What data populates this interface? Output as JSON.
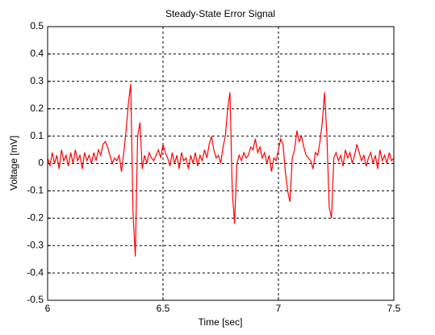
{
  "chart_data": {
    "type": "line",
    "title": "Steady-State Error Signal",
    "x_label": "Time [sec]",
    "y_label": "Voltage [mV]",
    "x": [
      6.0,
      6.01,
      6.02,
      6.03,
      6.04,
      6.05,
      6.06,
      6.07,
      6.08,
      6.09,
      6.1,
      6.11,
      6.12,
      6.13,
      6.14,
      6.15,
      6.16,
      6.17,
      6.18,
      6.19,
      6.2,
      6.21,
      6.22,
      6.23,
      6.24,
      6.25,
      6.26,
      6.27,
      6.28,
      6.29,
      6.3,
      6.31,
      6.32,
      6.33,
      6.34,
      6.35,
      6.36,
      6.37,
      6.38,
      6.39,
      6.4,
      6.41,
      6.42,
      6.43,
      6.44,
      6.45,
      6.46,
      6.47,
      6.48,
      6.49,
      6.5,
      6.51,
      6.52,
      6.53,
      6.54,
      6.55,
      6.56,
      6.57,
      6.58,
      6.59,
      6.6,
      6.61,
      6.62,
      6.63,
      6.64,
      6.65,
      6.66,
      6.67,
      6.68,
      6.69,
      6.7,
      6.71,
      6.72,
      6.73,
      6.74,
      6.75,
      6.76,
      6.77,
      6.78,
      6.79,
      6.8,
      6.81,
      6.82,
      6.83,
      6.84,
      6.85,
      6.86,
      6.87,
      6.88,
      6.89,
      6.9,
      6.91,
      6.92,
      6.93,
      6.94,
      6.95,
      6.96,
      6.97,
      6.98,
      6.99,
      7.0,
      7.01,
      7.02,
      7.03,
      7.04,
      7.05,
      7.06,
      7.07,
      7.08,
      7.09,
      7.1,
      7.11,
      7.12,
      7.13,
      7.14,
      7.15,
      7.16,
      7.17,
      7.18,
      7.19,
      7.2,
      7.21,
      7.22,
      7.23,
      7.24,
      7.25,
      7.26,
      7.27,
      7.28,
      7.29,
      7.3,
      7.31,
      7.32,
      7.33,
      7.34,
      7.35,
      7.36,
      7.37,
      7.38,
      7.39,
      7.4,
      7.41,
      7.42,
      7.43,
      7.44,
      7.45,
      7.46,
      7.47,
      7.48,
      7.49,
      7.5
    ],
    "values": [
      0.02,
      -0.01,
      0.04,
      0.0,
      0.03,
      -0.02,
      0.05,
      0.01,
      0.03,
      -0.01,
      0.04,
      0.0,
      0.05,
      0.01,
      0.03,
      -0.02,
      0.04,
      0.01,
      0.03,
      0.0,
      0.04,
      0.01,
      0.05,
      0.03,
      0.07,
      0.08,
      0.06,
      0.03,
      0.0,
      0.02,
      0.01,
      0.03,
      -0.03,
      0.04,
      0.12,
      0.22,
      0.29,
      -0.18,
      -0.34,
      0.1,
      0.15,
      -0.02,
      0.03,
      0.0,
      0.04,
      0.02,
      0.01,
      0.03,
      0.05,
      0.02,
      0.07,
      0.04,
      0.02,
      -0.01,
      0.04,
      0.0,
      0.03,
      -0.02,
      0.04,
      0.01,
      0.02,
      -0.02,
      0.03,
      0.0,
      0.04,
      -0.01,
      0.03,
      0.01,
      0.05,
      0.02,
      0.07,
      0.1,
      0.05,
      0.02,
      0.03,
      0.0,
      0.06,
      0.1,
      0.2,
      0.26,
      -0.1,
      -0.22,
      0.0,
      0.03,
      0.01,
      0.04,
      0.02,
      0.03,
      0.06,
      0.05,
      0.09,
      0.04,
      0.06,
      0.02,
      0.04,
      0.0,
      0.03,
      -0.03,
      0.02,
      0.01,
      0.05,
      0.09,
      0.07,
      -0.03,
      -0.1,
      -0.14,
      0.02,
      0.05,
      0.12,
      0.08,
      0.1,
      0.06,
      0.03,
      0.02,
      0.01,
      -0.02,
      0.04,
      0.03,
      0.08,
      0.15,
      0.26,
      0.1,
      -0.16,
      -0.2,
      0.02,
      0.04,
      0.01,
      0.03,
      -0.01,
      0.05,
      0.02,
      0.04,
      0.0,
      0.03,
      0.07,
      0.04,
      0.01,
      0.03,
      -0.01,
      0.02,
      0.04,
      0.0,
      0.03,
      -0.02,
      0.05,
      0.01,
      0.03,
      0.0,
      0.04,
      0.01,
      0.02
    ],
    "color": "#ff0000",
    "xlim": [
      6,
      7.5
    ],
    "ylim": [
      -0.5,
      0.5
    ],
    "xticks": [
      6,
      6.5,
      7,
      7.5
    ],
    "yticks": [
      -0.5,
      -0.4,
      -0.3,
      -0.2,
      -0.1,
      0,
      0.1,
      0.2,
      0.3,
      0.4,
      0.5
    ],
    "grid": true
  }
}
